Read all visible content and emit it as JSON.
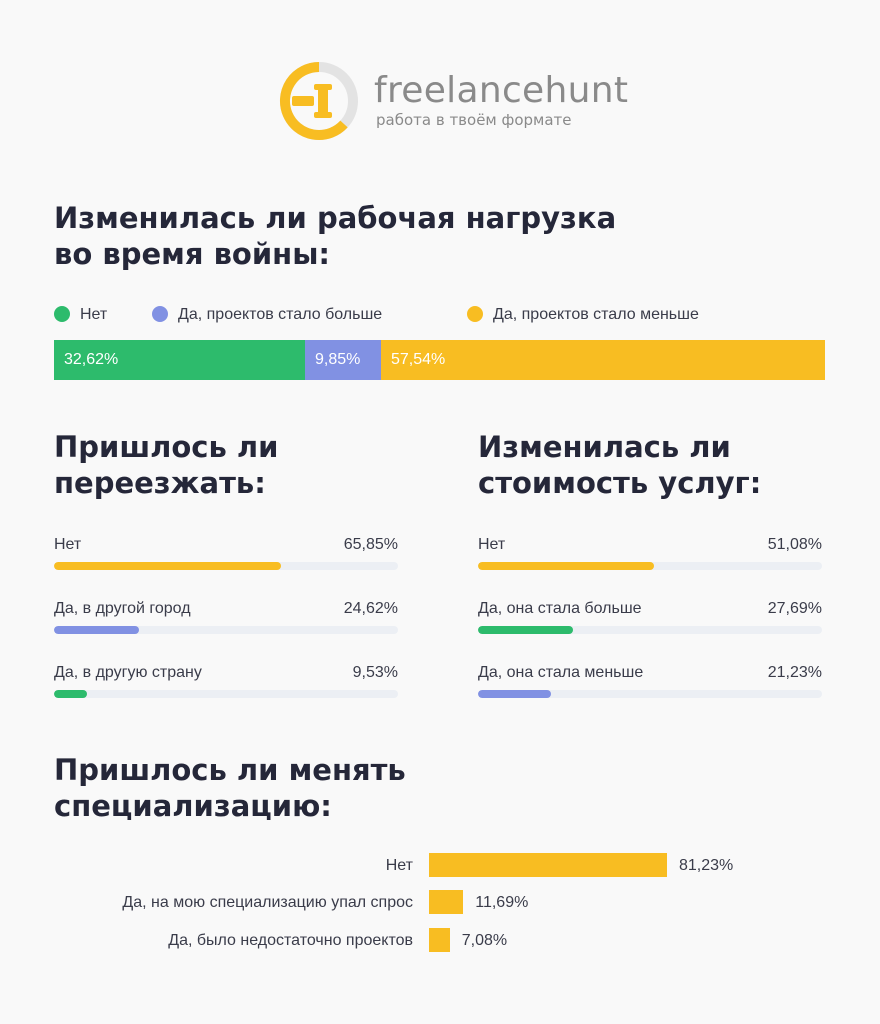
{
  "brand": {
    "name": "freelancehunt",
    "tagline": "работа в твоём формате"
  },
  "colors": {
    "green": "#2dbb6c",
    "blue": "#8191e3",
    "yellow": "#f8bd22",
    "track": "#eceff4",
    "logo_orange": "#f8bd22",
    "logo_gray": "#e3e3e3"
  },
  "chart_data": [
    {
      "type": "bar",
      "orientation": "stacked-horizontal",
      "title": "Изменилась ли рабочая нагрузка во время войны:",
      "legend_position": "top",
      "series": [
        {
          "name": "Нет",
          "value": 32.62,
          "label": "32,62%",
          "color": "#2dbb6c"
        },
        {
          "name": "Да, проектов стало больше",
          "value": 9.85,
          "label": "9,85%",
          "color": "#8191e3"
        },
        {
          "name": "Да, проектов стало меньше",
          "value": 57.54,
          "label": "57,54%",
          "color": "#f8bd22"
        }
      ]
    },
    {
      "type": "bar",
      "orientation": "progress",
      "title": "Пришлось ли переезжать:",
      "items": [
        {
          "label": "Нет",
          "value": 65.85,
          "value_label": "65,85%",
          "color": "#f8bd22"
        },
        {
          "label": "Да, в другой город",
          "value": 24.62,
          "value_label": "24,62%",
          "color": "#8191e3"
        },
        {
          "label": "Да, в другую страну",
          "value": 9.53,
          "value_label": "9,53%",
          "color": "#2dbb6c"
        }
      ]
    },
    {
      "type": "bar",
      "orientation": "progress",
      "title": "Изменилась ли стоимость услуг:",
      "items": [
        {
          "label": "Нет",
          "value": 51.08,
          "value_label": "51,08%",
          "color": "#f8bd22"
        },
        {
          "label": "Да, она стала больше",
          "value": 27.69,
          "value_label": "27,69%",
          "color": "#2dbb6c"
        },
        {
          "label": "Да, она стала меньше",
          "value": 21.23,
          "value_label": "21,23%",
          "color": "#8191e3"
        }
      ]
    },
    {
      "type": "bar",
      "orientation": "horizontal",
      "title": "Пришлось ли менять специализацию:",
      "xlim": [
        0,
        100
      ],
      "categories": [
        "Нет",
        "Да, на мою специализацию упал спрос",
        "Да, было недостаточно проектов"
      ],
      "values": [
        81.23,
        11.69,
        7.08
      ],
      "value_labels": [
        "81,23%",
        "11,69%",
        "7,08%"
      ],
      "color": "#f8bd22"
    }
  ]
}
